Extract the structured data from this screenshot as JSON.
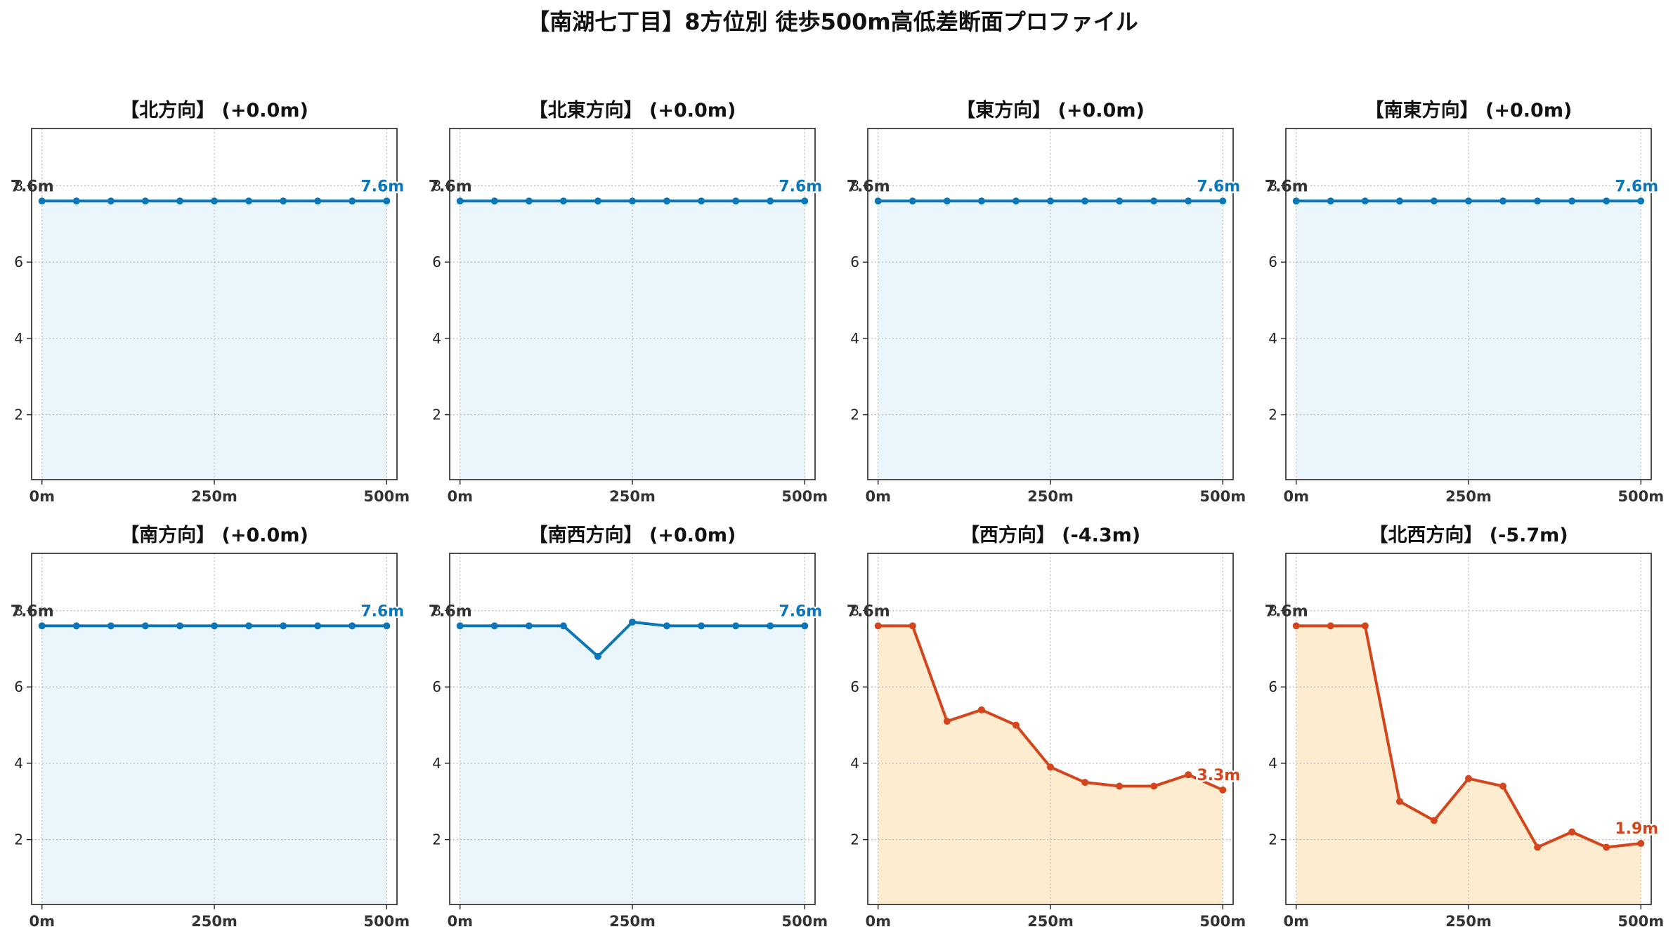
{
  "title": "【南湖七丁目】8方位別 徒歩500m高低差断面プロファイル",
  "colors": {
    "flat_line": "#0b76b8",
    "flat_fill": "#eaf6fc",
    "down_line": "#d5451b",
    "down_fill": "#feecd1",
    "start_label": "#333333",
    "grid": "#bbbbbb"
  },
  "chart_data": [
    {
      "type": "area",
      "title": "【北方向】 (+0.0m)",
      "style": "flat",
      "x": [
        0,
        50,
        100,
        150,
        200,
        250,
        300,
        350,
        400,
        450,
        500
      ],
      "y": [
        7.6,
        7.6,
        7.6,
        7.6,
        7.6,
        7.6,
        7.6,
        7.6,
        7.6,
        7.6,
        7.6
      ],
      "start_label": "7.6m",
      "end_label": "7.6m",
      "xticks": [
        "0m",
        "250m",
        "500m"
      ],
      "xtick_values": [
        0,
        250,
        500
      ],
      "yticks": [
        "2",
        "4",
        "6",
        "8"
      ],
      "ytick_values": [
        2,
        4,
        6,
        8
      ],
      "xlim": [
        -15,
        515
      ],
      "ylim": [
        0.3,
        9.5
      ],
      "grid": true
    },
    {
      "type": "area",
      "title": "【北東方向】 (+0.0m)",
      "style": "flat",
      "x": [
        0,
        50,
        100,
        150,
        200,
        250,
        300,
        350,
        400,
        450,
        500
      ],
      "y": [
        7.6,
        7.6,
        7.6,
        7.6,
        7.6,
        7.6,
        7.6,
        7.6,
        7.6,
        7.6,
        7.6
      ],
      "start_label": "7.6m",
      "end_label": "7.6m",
      "xticks": [
        "0m",
        "250m",
        "500m"
      ],
      "xtick_values": [
        0,
        250,
        500
      ],
      "yticks": [
        "2",
        "4",
        "6",
        "8"
      ],
      "ytick_values": [
        2,
        4,
        6,
        8
      ],
      "xlim": [
        -15,
        515
      ],
      "ylim": [
        0.3,
        9.5
      ],
      "grid": true
    },
    {
      "type": "area",
      "title": "【東方向】 (+0.0m)",
      "style": "flat",
      "x": [
        0,
        50,
        100,
        150,
        200,
        250,
        300,
        350,
        400,
        450,
        500
      ],
      "y": [
        7.6,
        7.6,
        7.6,
        7.6,
        7.6,
        7.6,
        7.6,
        7.6,
        7.6,
        7.6,
        7.6
      ],
      "start_label": "7.6m",
      "end_label": "7.6m",
      "xticks": [
        "0m",
        "250m",
        "500m"
      ],
      "xtick_values": [
        0,
        250,
        500
      ],
      "yticks": [
        "2",
        "4",
        "6",
        "8"
      ],
      "ytick_values": [
        2,
        4,
        6,
        8
      ],
      "xlim": [
        -15,
        515
      ],
      "ylim": [
        0.3,
        9.5
      ],
      "grid": true
    },
    {
      "type": "area",
      "title": "【南東方向】 (+0.0m)",
      "style": "flat",
      "x": [
        0,
        50,
        100,
        150,
        200,
        250,
        300,
        350,
        400,
        450,
        500
      ],
      "y": [
        7.6,
        7.6,
        7.6,
        7.6,
        7.6,
        7.6,
        7.6,
        7.6,
        7.6,
        7.6,
        7.6
      ],
      "start_label": "7.6m",
      "end_label": "7.6m",
      "xticks": [
        "0m",
        "250m",
        "500m"
      ],
      "xtick_values": [
        0,
        250,
        500
      ],
      "yticks": [
        "2",
        "4",
        "6",
        "8"
      ],
      "ytick_values": [
        2,
        4,
        6,
        8
      ],
      "xlim": [
        -15,
        515
      ],
      "ylim": [
        0.3,
        9.5
      ],
      "grid": true
    },
    {
      "type": "area",
      "title": "【南方向】 (+0.0m)",
      "style": "flat",
      "x": [
        0,
        50,
        100,
        150,
        200,
        250,
        300,
        350,
        400,
        450,
        500
      ],
      "y": [
        7.6,
        7.6,
        7.6,
        7.6,
        7.6,
        7.6,
        7.6,
        7.6,
        7.6,
        7.6,
        7.6
      ],
      "start_label": "7.6m",
      "end_label": "7.6m",
      "xticks": [
        "0m",
        "250m",
        "500m"
      ],
      "xtick_values": [
        0,
        250,
        500
      ],
      "yticks": [
        "2",
        "4",
        "6",
        "8"
      ],
      "ytick_values": [
        2,
        4,
        6,
        8
      ],
      "xlim": [
        -15,
        515
      ],
      "ylim": [
        0.3,
        9.5
      ],
      "grid": true
    },
    {
      "type": "area",
      "title": "【南西方向】 (+0.0m)",
      "style": "flat",
      "x": [
        0,
        50,
        100,
        150,
        200,
        250,
        300,
        350,
        400,
        450,
        500
      ],
      "y": [
        7.6,
        7.6,
        7.6,
        7.6,
        6.8,
        7.7,
        7.6,
        7.6,
        7.6,
        7.6,
        7.6
      ],
      "start_label": "7.6m",
      "end_label": "7.6m",
      "xticks": [
        "0m",
        "250m",
        "500m"
      ],
      "xtick_values": [
        0,
        250,
        500
      ],
      "yticks": [
        "2",
        "4",
        "6",
        "8"
      ],
      "ytick_values": [
        2,
        4,
        6,
        8
      ],
      "xlim": [
        -15,
        515
      ],
      "ylim": [
        0.3,
        9.5
      ],
      "grid": true
    },
    {
      "type": "area",
      "title": "【西方向】 (-4.3m)",
      "style": "down",
      "x": [
        0,
        50,
        100,
        150,
        200,
        250,
        300,
        350,
        400,
        450,
        500
      ],
      "y": [
        7.6,
        7.6,
        5.1,
        5.4,
        5.0,
        3.9,
        3.5,
        3.4,
        3.4,
        3.7,
        3.3
      ],
      "start_label": "7.6m",
      "end_label": "3.3m",
      "xticks": [
        "0m",
        "250m",
        "500m"
      ],
      "xtick_values": [
        0,
        250,
        500
      ],
      "yticks": [
        "2",
        "4",
        "6",
        "8"
      ],
      "ytick_values": [
        2,
        4,
        6,
        8
      ],
      "xlim": [
        -15,
        515
      ],
      "ylim": [
        0.3,
        9.5
      ],
      "grid": true
    },
    {
      "type": "area",
      "title": "【北西方向】 (-5.7m)",
      "style": "down",
      "x": [
        0,
        50,
        100,
        150,
        200,
        250,
        300,
        350,
        400,
        450,
        500
      ],
      "y": [
        7.6,
        7.6,
        7.6,
        3.0,
        2.5,
        3.6,
        3.4,
        1.8,
        2.2,
        1.8,
        1.9
      ],
      "start_label": "7.6m",
      "end_label": "1.9m",
      "xticks": [
        "0m",
        "250m",
        "500m"
      ],
      "xtick_values": [
        0,
        250,
        500
      ],
      "yticks": [
        "2",
        "4",
        "6",
        "8"
      ],
      "ytick_values": [
        2,
        4,
        6,
        8
      ],
      "xlim": [
        -15,
        515
      ],
      "ylim": [
        0.3,
        9.5
      ],
      "grid": true
    }
  ]
}
